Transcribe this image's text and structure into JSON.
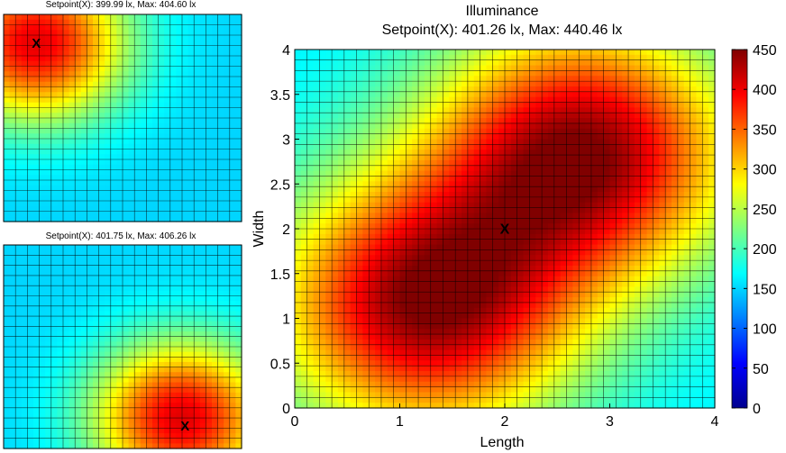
{
  "chart_data": [
    {
      "type": "heatmap",
      "title": "Setpoint(X): 399.99 lx, Max: 404.60 lx",
      "peaks": [
        {
          "x": 0.55,
          "y": 3.45,
          "value": 404.6,
          "sigma": 1.05
        }
      ],
      "marker": {
        "x": 0.55,
        "y": 3.45,
        "label": "X"
      },
      "xlim": [
        0,
        4
      ],
      "ylim": [
        0,
        4
      ],
      "grid": true,
      "axes_visible": false
    },
    {
      "type": "heatmap",
      "title": "Setpoint(X): 401.75 lx, Max: 406.26 lx",
      "peaks": [
        {
          "x": 3.0,
          "y": 0.6,
          "value": 406.26,
          "sigma": 1.05
        }
      ],
      "marker": {
        "x": 3.05,
        "y": 0.45,
        "label": "X"
      },
      "xlim": [
        0,
        4
      ],
      "ylim": [
        0,
        4
      ],
      "grid": true,
      "axes_visible": false
    },
    {
      "type": "heatmap",
      "title": "Illuminance",
      "subtitle": "Setpoint(X): 401.26 lx, Max: 440.46 lx",
      "xlabel": "Length",
      "ylabel": "Width",
      "xlim": [
        0,
        4
      ],
      "ylim": [
        0,
        4
      ],
      "x_ticks": [
        "0",
        "1",
        "2",
        "3",
        "4"
      ],
      "y_ticks": [
        "0",
        "0.5",
        "1",
        "1.5",
        "2",
        "2.5",
        "3",
        "3.5",
        "4"
      ],
      "peaks": [
        {
          "x": 1.25,
          "y": 1.15,
          "value": 440.46,
          "sigma": 1.0
        },
        {
          "x": 2.75,
          "y": 2.85,
          "value": 440.46,
          "sigma": 1.0
        }
      ],
      "marker": {
        "x": 2.0,
        "y": 2.0,
        "label": "X"
      },
      "grid": true,
      "colorbar": {
        "min": 0,
        "max": 450,
        "ticks": [
          "0",
          "50",
          "100",
          "150",
          "200",
          "250",
          "300",
          "350",
          "400",
          "450"
        ],
        "colormap": "jet",
        "placement": "right"
      }
    }
  ]
}
